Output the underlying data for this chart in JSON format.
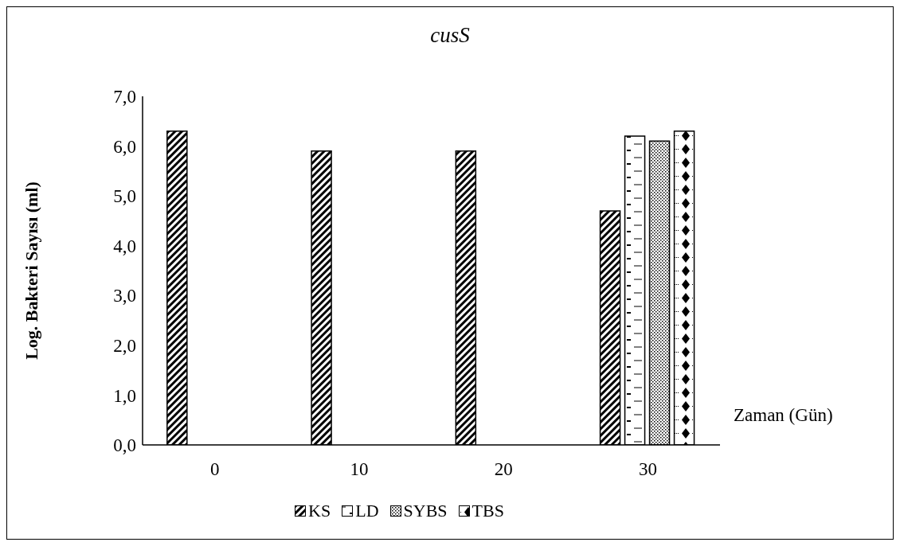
{
  "chart_data": {
    "type": "bar",
    "title": "cusS",
    "xlabel": "Zaman (Gün)",
    "ylabel": "Log. Bakteri Sayısı (ml)",
    "categories": [
      "0",
      "10",
      "20",
      "30"
    ],
    "series": [
      {
        "name": "KS",
        "color": "#000000",
        "values": [
          6.3,
          5.9,
          5.9,
          4.7
        ]
      },
      {
        "name": "LD",
        "color": "#000000",
        "values": [
          null,
          null,
          null,
          6.2
        ]
      },
      {
        "name": "SYBS",
        "color": "#000000",
        "values": [
          null,
          null,
          null,
          6.1
        ]
      },
      {
        "name": "TBS",
        "color": "#000000",
        "values": [
          null,
          null,
          null,
          6.3
        ]
      }
    ],
    "ylim": [
      0,
      7
    ],
    "yticks": [
      {
        "value": 0,
        "label": "0,0"
      },
      {
        "value": 1,
        "label": "1,0"
      },
      {
        "value": 2,
        "label": "2,0"
      },
      {
        "value": 3,
        "label": "3,0"
      },
      {
        "value": 4,
        "label": "4,0"
      },
      {
        "value": 5,
        "label": "5,0"
      },
      {
        "value": 6,
        "label": "6,0"
      },
      {
        "value": 7,
        "label": "7,0"
      }
    ],
    "grid": false,
    "legend": "bottom"
  }
}
